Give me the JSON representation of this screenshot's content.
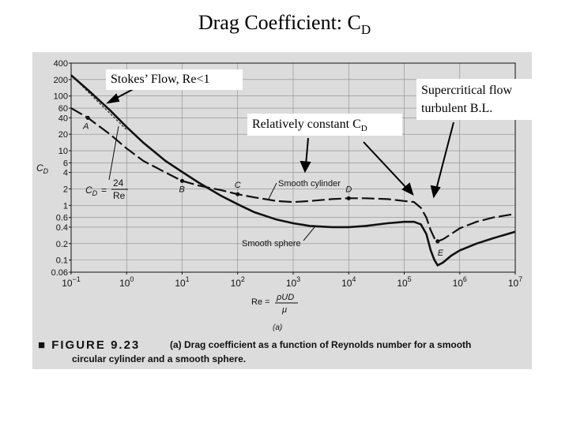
{
  "slide": {
    "title_main": "Drag Coefficient: C",
    "title_sub": "D"
  },
  "callouts": {
    "stokes": "Stokes’ Flow, Re<1",
    "relative_main": "Relatively constant C",
    "relative_sub": "D",
    "supercritical_line1": "Supercritical flow",
    "supercritical_line2": "turbulent B.L."
  },
  "figure": {
    "caption_label": "■ FIGURE 9.23",
    "caption_line1": "(a) Drag coefficient as a function of Reynolds number for a smooth",
    "caption_line2": "circular cylinder and a smooth sphere.",
    "panel_label": "(a)",
    "stokes_formula_lhs": "C",
    "stokes_formula_lhs_sub": "D",
    "stokes_formula_eq": "=",
    "stokes_formula_num": "24",
    "stokes_formula_den": "Re",
    "re_def_lhs": "Re =",
    "re_def_num": "ρUD",
    "re_def_den": "μ"
  },
  "chart_data": {
    "type": "line",
    "title": "",
    "xlabel": "Re",
    "ylabel": "C_D",
    "xscale": "log",
    "yscale": "log",
    "xlim": [
      0.1,
      10000000
    ],
    "ylim": [
      0.06,
      400
    ],
    "x_ticks": [
      {
        "value": 0.1,
        "base": "10",
        "exp": "−1"
      },
      {
        "value": 1,
        "base": "10",
        "exp": "0"
      },
      {
        "value": 10,
        "base": "10",
        "exp": "1"
      },
      {
        "value": 100,
        "base": "10",
        "exp": "2"
      },
      {
        "value": 1000,
        "base": "10",
        "exp": "3"
      },
      {
        "value": 10000,
        "base": "10",
        "exp": "4"
      },
      {
        "value": 100000,
        "base": "10",
        "exp": "5"
      },
      {
        "value": 1000000,
        "base": "10",
        "exp": "6"
      },
      {
        "value": 10000000,
        "base": "10",
        "exp": "7"
      }
    ],
    "y_ticks": [
      {
        "value": 400,
        "label": "400"
      },
      {
        "value": 200,
        "label": "200"
      },
      {
        "value": 100,
        "label": "100"
      },
      {
        "value": 60,
        "label": "60"
      },
      {
        "value": 40,
        "label": "40"
      },
      {
        "value": 20,
        "label": "20"
      },
      {
        "value": 10,
        "label": "10"
      },
      {
        "value": 6,
        "label": "6"
      },
      {
        "value": 4,
        "label": "4"
      },
      {
        "value": 2,
        "label": "2"
      },
      {
        "value": 1,
        "label": "1"
      },
      {
        "value": 0.6,
        "label": "0.6"
      },
      {
        "value": 0.4,
        "label": "0.4"
      },
      {
        "value": 0.2,
        "label": "0.2"
      },
      {
        "value": 0.1,
        "label": "0.1"
      },
      {
        "value": 0.06,
        "label": "0.06"
      }
    ],
    "series": [
      {
        "name": "Smooth cylinder",
        "style": "dashed",
        "x": [
          0.1,
          0.2,
          0.5,
          1,
          2,
          5,
          10,
          20,
          50,
          100,
          200,
          500,
          1000,
          2000,
          5000,
          10000,
          20000,
          50000,
          100000,
          150000,
          200000,
          250000,
          300000,
          350000,
          400000,
          500000,
          700000,
          1000000,
          2000000,
          4000000,
          10000000
        ],
        "values": [
          60,
          40,
          20,
          11,
          6.5,
          4,
          2.8,
          2.3,
          1.9,
          1.6,
          1.4,
          1.2,
          1.15,
          1.2,
          1.3,
          1.35,
          1.35,
          1.3,
          1.2,
          1.15,
          0.9,
          0.6,
          0.35,
          0.25,
          0.22,
          0.24,
          0.3,
          0.38,
          0.5,
          0.6,
          0.7
        ]
      },
      {
        "name": "Smooth sphere",
        "style": "solid",
        "x": [
          0.1,
          0.2,
          0.5,
          1,
          2,
          5,
          10,
          20,
          50,
          100,
          200,
          500,
          1000,
          2000,
          5000,
          10000,
          20000,
          50000,
          100000,
          150000,
          200000,
          250000,
          300000,
          350000,
          400000,
          500000,
          700000,
          1000000,
          2000000,
          4000000,
          10000000
        ],
        "values": [
          240,
          130,
          55,
          27,
          14,
          6.5,
          4.1,
          2.6,
          1.5,
          1.05,
          0.75,
          0.55,
          0.47,
          0.42,
          0.4,
          0.4,
          0.42,
          0.47,
          0.5,
          0.5,
          0.45,
          0.3,
          0.15,
          0.1,
          0.08,
          0.09,
          0.12,
          0.15,
          0.2,
          0.25,
          0.33
        ]
      },
      {
        "name": "C_D = 24/Re",
        "style": "thin",
        "x": [
          0.1,
          0.2,
          0.5,
          1
        ],
        "values": [
          240,
          120,
          48,
          24
        ]
      }
    ],
    "point_labels": [
      {
        "label": "A",
        "x": 0.2
      },
      {
        "label": "B",
        "x": 10
      },
      {
        "label": "C",
        "x": 100
      },
      {
        "label": "D",
        "x": 10000
      },
      {
        "label": "E",
        "x": 400000
      }
    ],
    "curve_labels": [
      {
        "text": "Smooth cylinder"
      },
      {
        "text": "Smooth sphere"
      }
    ],
    "colors": {
      "ink": "#111111",
      "scan_bg": "#dcdcdc"
    }
  }
}
